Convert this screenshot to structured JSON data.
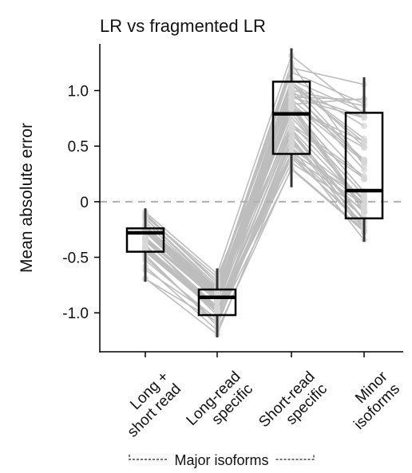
{
  "chart_data": {
    "type": "box",
    "title": "LR vs fragmented LR",
    "ylabel": "Mean absolute error",
    "ylim": [
      -1.35,
      1.42
    ],
    "yticks": [
      {
        "value": 1.0,
        "label": "1.0"
      },
      {
        "value": 0.5,
        "label": "0.5"
      },
      {
        "value": 0.0,
        "label": "0"
      },
      {
        "value": -0.5,
        "label": "-0.5"
      },
      {
        "value": -1.0,
        "label": "-1.0"
      }
    ],
    "reference_line": {
      "value": 0,
      "style": "dashed"
    },
    "categories": [
      {
        "lines": [
          "Long +",
          "short read"
        ]
      },
      {
        "lines": [
          "Long-read",
          "specific"
        ]
      },
      {
        "lines": [
          "Short-read",
          "specific"
        ]
      },
      {
        "lines": [
          "Minor",
          "isoforms"
        ]
      }
    ],
    "group_label": {
      "text": "Major isoforms",
      "spans": [
        0,
        2
      ]
    },
    "boxes": [
      {
        "whisker_low": -0.72,
        "q1": -0.45,
        "median": -0.28,
        "q3": -0.24,
        "whisker_high": -0.06
      },
      {
        "whisker_low": -1.22,
        "q1": -1.02,
        "median": -0.86,
        "q3": -0.79,
        "whisker_high": -0.6
      },
      {
        "whisker_low": 0.13,
        "q1": 0.43,
        "median": 0.79,
        "q3": 1.08,
        "whisker_high": 1.38
      },
      {
        "whisker_low": -0.36,
        "q1": -0.15,
        "median": 0.1,
        "q3": 0.8,
        "whisker_high": 1.12
      }
    ],
    "points_per_category": 50,
    "colors": {
      "lines": "#bdbdbd",
      "points": "#d6d6d6",
      "box": "#000000",
      "reference": "#b0b0b0"
    }
  }
}
